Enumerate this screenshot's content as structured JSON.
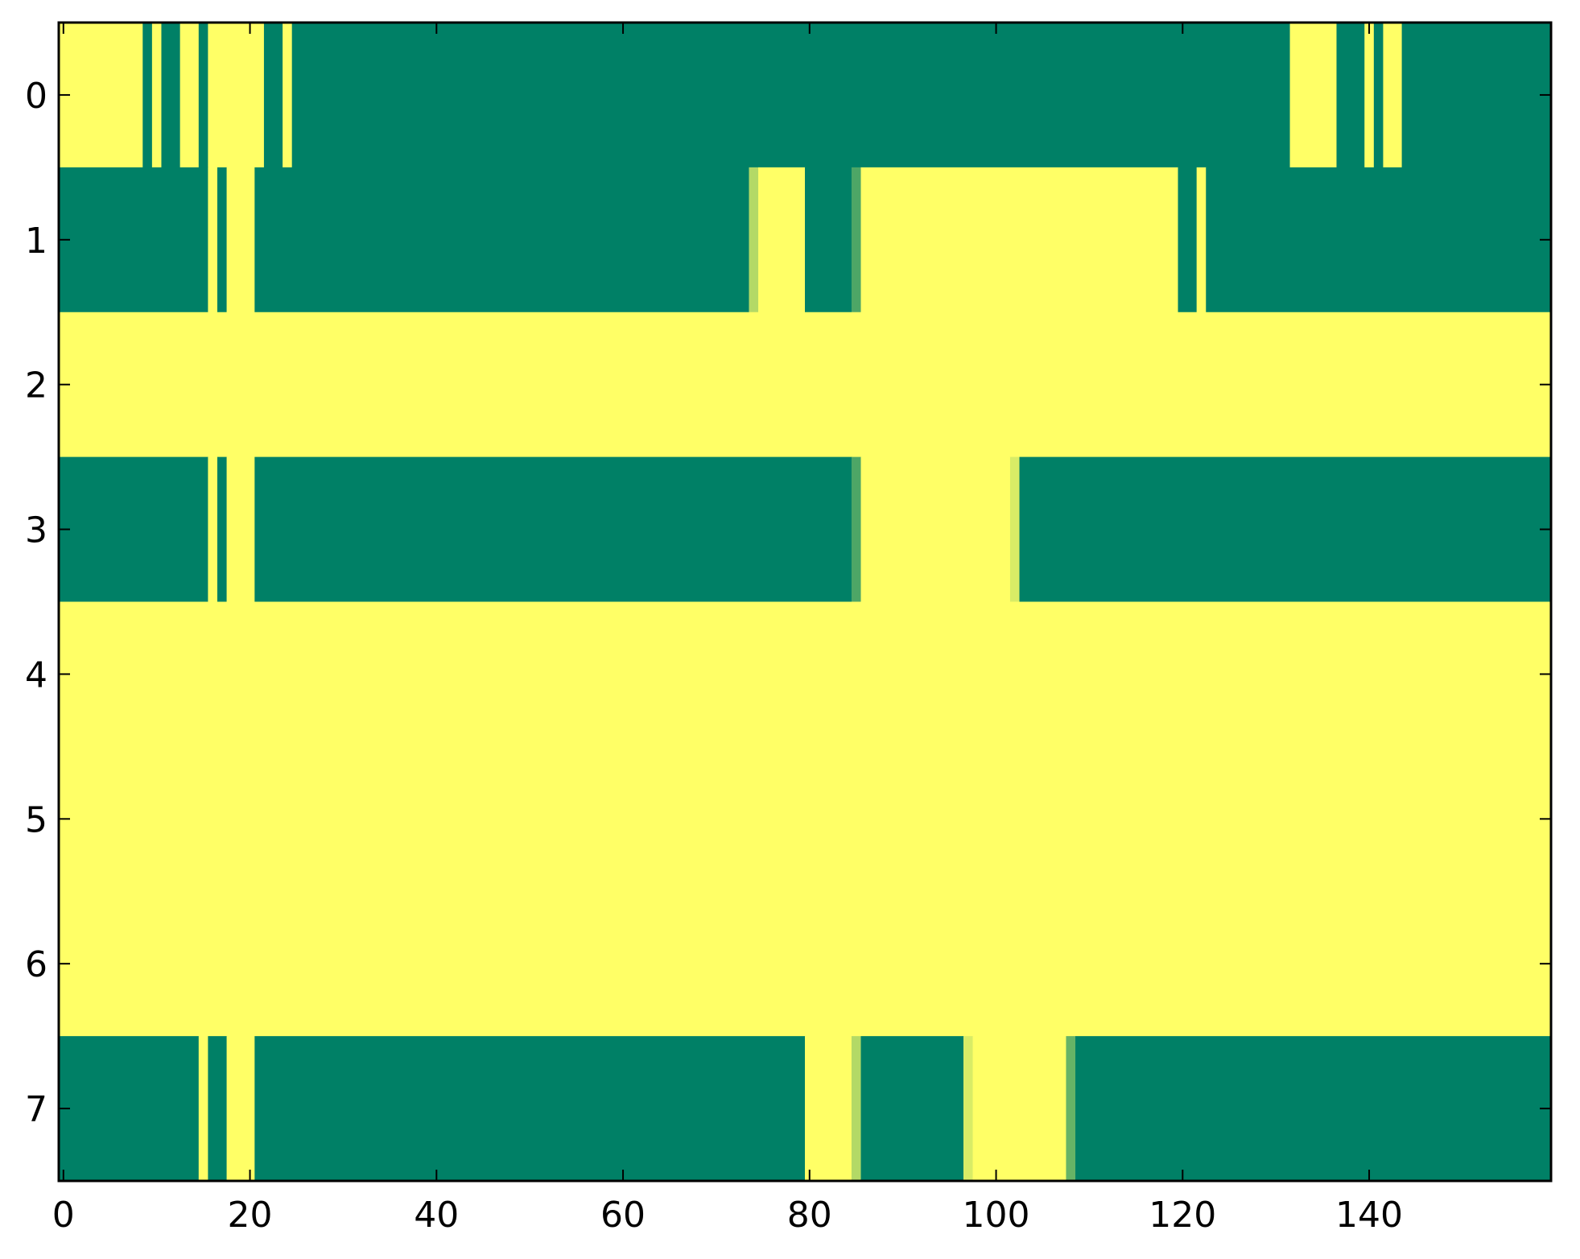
{
  "chart_data": {
    "type": "heatmap",
    "title": "",
    "xlabel": "",
    "ylabel": "",
    "x_range": [
      -0.5,
      159.5
    ],
    "y_range": [
      -0.5,
      7.5
    ],
    "n_columns": 160,
    "x_ticks": [
      0,
      20,
      40,
      60,
      80,
      100,
      120,
      140
    ],
    "x_tick_labels": [
      "0",
      "20",
      "40",
      "60",
      "80",
      "100",
      "120",
      "140"
    ],
    "y_ticks": [
      0,
      1,
      2,
      3,
      4,
      5,
      6,
      7
    ],
    "y_tick_labels": [
      "0",
      "1",
      "2",
      "3",
      "4",
      "5",
      "6",
      "7"
    ],
    "grid": false,
    "legend": "none",
    "colors": {
      "low": "#008066",
      "high": "#ffff66"
    },
    "rows": [
      {
        "row": 0,
        "base": 0,
        "runs": [
          [
            0,
            9,
            1
          ],
          [
            10,
            11,
            1
          ],
          [
            13,
            15,
            1
          ],
          [
            16,
            22,
            1
          ],
          [
            24,
            25,
            1
          ],
          [
            132,
            137,
            1
          ],
          [
            140,
            141,
            1
          ],
          [
            142,
            144,
            1
          ]
        ]
      },
      {
        "row": 1,
        "base": 0,
        "runs": [
          [
            16,
            17,
            1
          ],
          [
            18,
            21,
            1
          ],
          [
            74,
            75,
            0.7
          ],
          [
            75,
            80,
            1
          ],
          [
            85,
            86,
            0.3
          ],
          [
            86,
            120,
            1
          ],
          [
            122,
            123,
            1
          ]
        ]
      },
      {
        "row": 2,
        "base": 1,
        "runs": []
      },
      {
        "row": 3,
        "base": 0,
        "runs": [
          [
            16,
            17,
            1
          ],
          [
            18,
            21,
            1
          ],
          [
            85,
            86,
            0.3
          ],
          [
            86,
            102,
            1
          ],
          [
            102,
            103,
            0.85
          ],
          [
            103,
            103,
            1
          ]
        ]
      },
      {
        "row": 4,
        "base": 1,
        "runs": []
      },
      {
        "row": 5,
        "base": 1,
        "runs": []
      },
      {
        "row": 6,
        "base": 1,
        "runs": []
      },
      {
        "row": 7,
        "base": 0,
        "runs": [
          [
            15,
            16,
            1
          ],
          [
            18,
            21,
            1
          ],
          [
            80,
            85,
            1
          ],
          [
            85,
            86,
            0.7
          ],
          [
            97,
            98,
            0.85
          ],
          [
            98,
            108,
            1
          ],
          [
            108,
            109,
            0.4
          ]
        ]
      }
    ]
  }
}
